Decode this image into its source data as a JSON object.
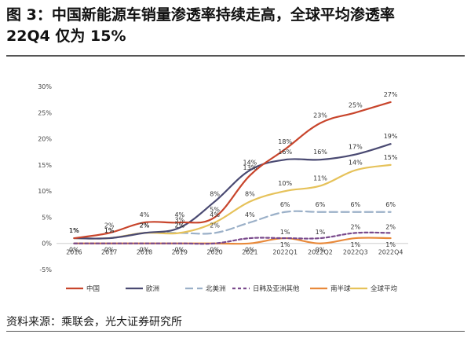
{
  "title_line1": "图 3：中国新能源车销量渗透率持续走高，全球平均渗透率",
  "title_line2": "22Q4 仅为 15%",
  "source": "资料来源：乘联会，光大证券研究所",
  "chart_data": {
    "type": "line",
    "categories": [
      "2016",
      "2017",
      "2018",
      "2019",
      "2020",
      "2021",
      "2022Q1",
      "2022Q2",
      "2022Q3",
      "2022Q4"
    ],
    "ylim": [
      -5,
      30
    ],
    "yticks": [
      -5,
      0,
      5,
      10,
      15,
      20,
      25,
      30
    ],
    "ytick_labels": [
      "-5%",
      "0%",
      "5%",
      "10%",
      "15%",
      "20%",
      "25%",
      "30%"
    ],
    "grid": false,
    "legend_position": "bottom",
    "series": [
      {
        "name": "中国",
        "color": "#C8452C",
        "dash": "",
        "values": [
          1,
          2,
          4,
          4,
          5,
          13,
          18,
          23,
          25,
          27
        ],
        "labels": [
          "1%",
          "2%",
          "4%",
          "4%",
          "5%",
          "13%",
          "18%",
          "23%",
          "25%",
          "27%"
        ]
      },
      {
        "name": "欧洲",
        "color": "#4A4A72",
        "dash": "",
        "values": [
          1,
          1,
          2,
          3,
          8,
          14,
          16,
          16,
          17,
          19
        ],
        "labels": [
          "1%",
          "1%",
          "2%",
          "3%",
          "8%",
          "14%",
          "16%",
          "16%",
          "17%",
          "19%"
        ]
      },
      {
        "name": "北美洲",
        "color": "#9BB0C8",
        "dash": "10,5",
        "values": [
          1,
          1,
          2,
          2,
          2,
          4,
          6,
          6,
          6,
          6
        ],
        "labels": [
          "1%",
          "1%",
          "2%",
          "2%",
          "2%",
          "4%",
          "6%",
          "6%",
          "6%",
          "6%"
        ]
      },
      {
        "name": "日韩及亚洲其他",
        "color": "#7A4A8C",
        "dash": "4,3",
        "values": [
          0,
          0,
          0,
          0,
          0,
          1,
          1,
          1,
          2,
          2
        ],
        "labels": [
          "",
          "",
          "",
          "",
          "",
          "",
          "1%",
          "1%",
          "2%",
          "2%"
        ]
      },
      {
        "name": "南半球",
        "color": "#E8893A",
        "dash": "",
        "values": [
          0,
          0,
          0,
          0,
          0,
          0,
          1,
          0,
          1,
          1
        ],
        "labels": [
          "0%",
          "0%",
          "0%",
          "0%",
          "0%",
          "0%",
          "1%",
          "0%",
          "1%",
          "1%"
        ]
      },
      {
        "name": "全球平均",
        "color": "#E6C25A",
        "dash": "",
        "values": [
          1,
          1,
          2,
          2,
          4,
          8,
          10,
          11,
          14,
          15
        ],
        "labels": [
          "1%",
          "1%",
          "2%",
          "2%",
          "4%",
          "8%",
          "10%",
          "11%",
          "14%",
          "15%"
        ]
      }
    ]
  }
}
